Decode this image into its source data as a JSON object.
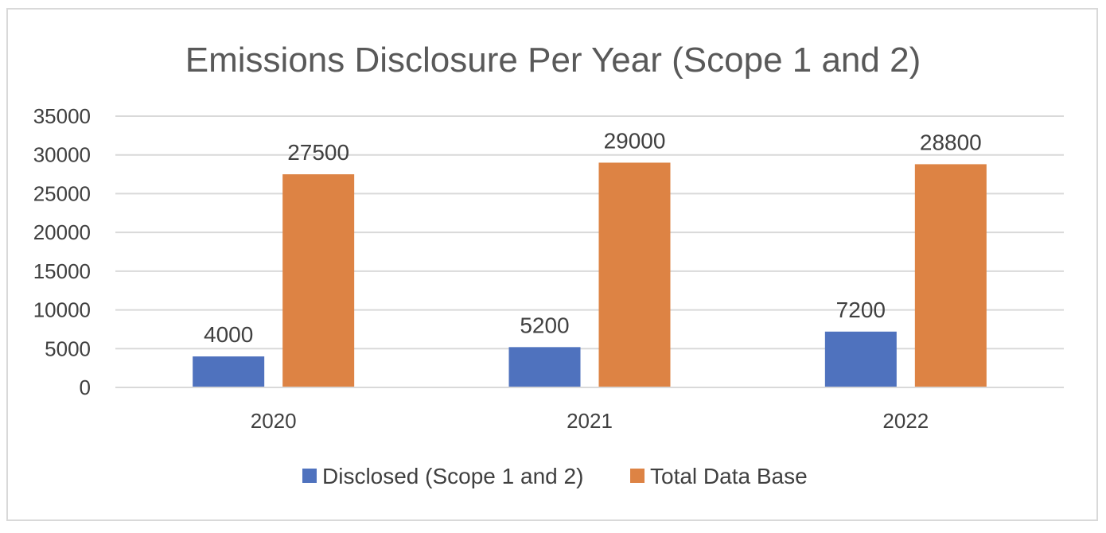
{
  "chart_data": {
    "type": "bar",
    "title": "Emissions Disclosure Per Year (Scope 1 and 2)",
    "xlabel": "",
    "ylabel": "",
    "categories": [
      "2020",
      "2021",
      "2022"
    ],
    "series": [
      {
        "name": "Disclosed (Scope 1 and 2)",
        "values": [
          4000,
          5200,
          7200
        ],
        "color": "#4f72be"
      },
      {
        "name": "Total Data Base",
        "values": [
          27500,
          29000,
          28800
        ],
        "color": "#dd8344"
      }
    ],
    "ylim": [
      0,
      35000
    ],
    "yticks": [
      0,
      5000,
      10000,
      15000,
      20000,
      25000,
      30000,
      35000
    ],
    "grid": true,
    "legend": "bottom",
    "data_labels": true
  }
}
